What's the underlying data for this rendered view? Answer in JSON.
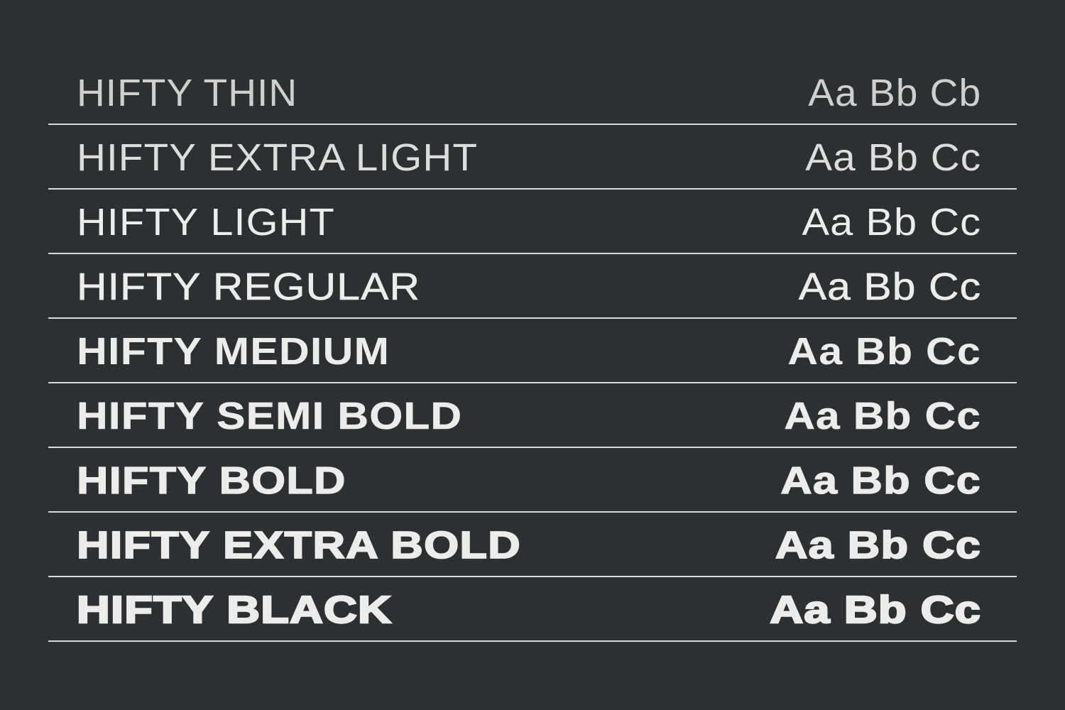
{
  "colors": {
    "background": "#2c3032",
    "text": "#ececea",
    "rule": "#d8d8d6"
  },
  "rows": [
    {
      "name": "HIFTY THIN",
      "sample": "Aa Bb Cb",
      "weight": 100
    },
    {
      "name": "HIFTY EXTRA LIGHT",
      "sample": "Aa Bb Cc",
      "weight": 200
    },
    {
      "name": "HIFTY LIGHT",
      "sample": "Aa Bb Cc",
      "weight": 300
    },
    {
      "name": "HIFTY REGULAR",
      "sample": "Aa Bb Cc",
      "weight": 400
    },
    {
      "name": "HIFTY MEDIUM",
      "sample": "Aa Bb Cc",
      "weight": 500
    },
    {
      "name": "HIFTY SEMI BOLD",
      "sample": "Aa Bb Cc",
      "weight": 600
    },
    {
      "name": "HIFTY BOLD",
      "sample": "Aa Bb Cc",
      "weight": 700
    },
    {
      "name": "HIFTY EXTRA BOLD",
      "sample": "Aa Bb Cc",
      "weight": 800
    },
    {
      "name": "HIFTY BLACK",
      "sample": "Aa Bb Cc",
      "weight": 900
    }
  ]
}
